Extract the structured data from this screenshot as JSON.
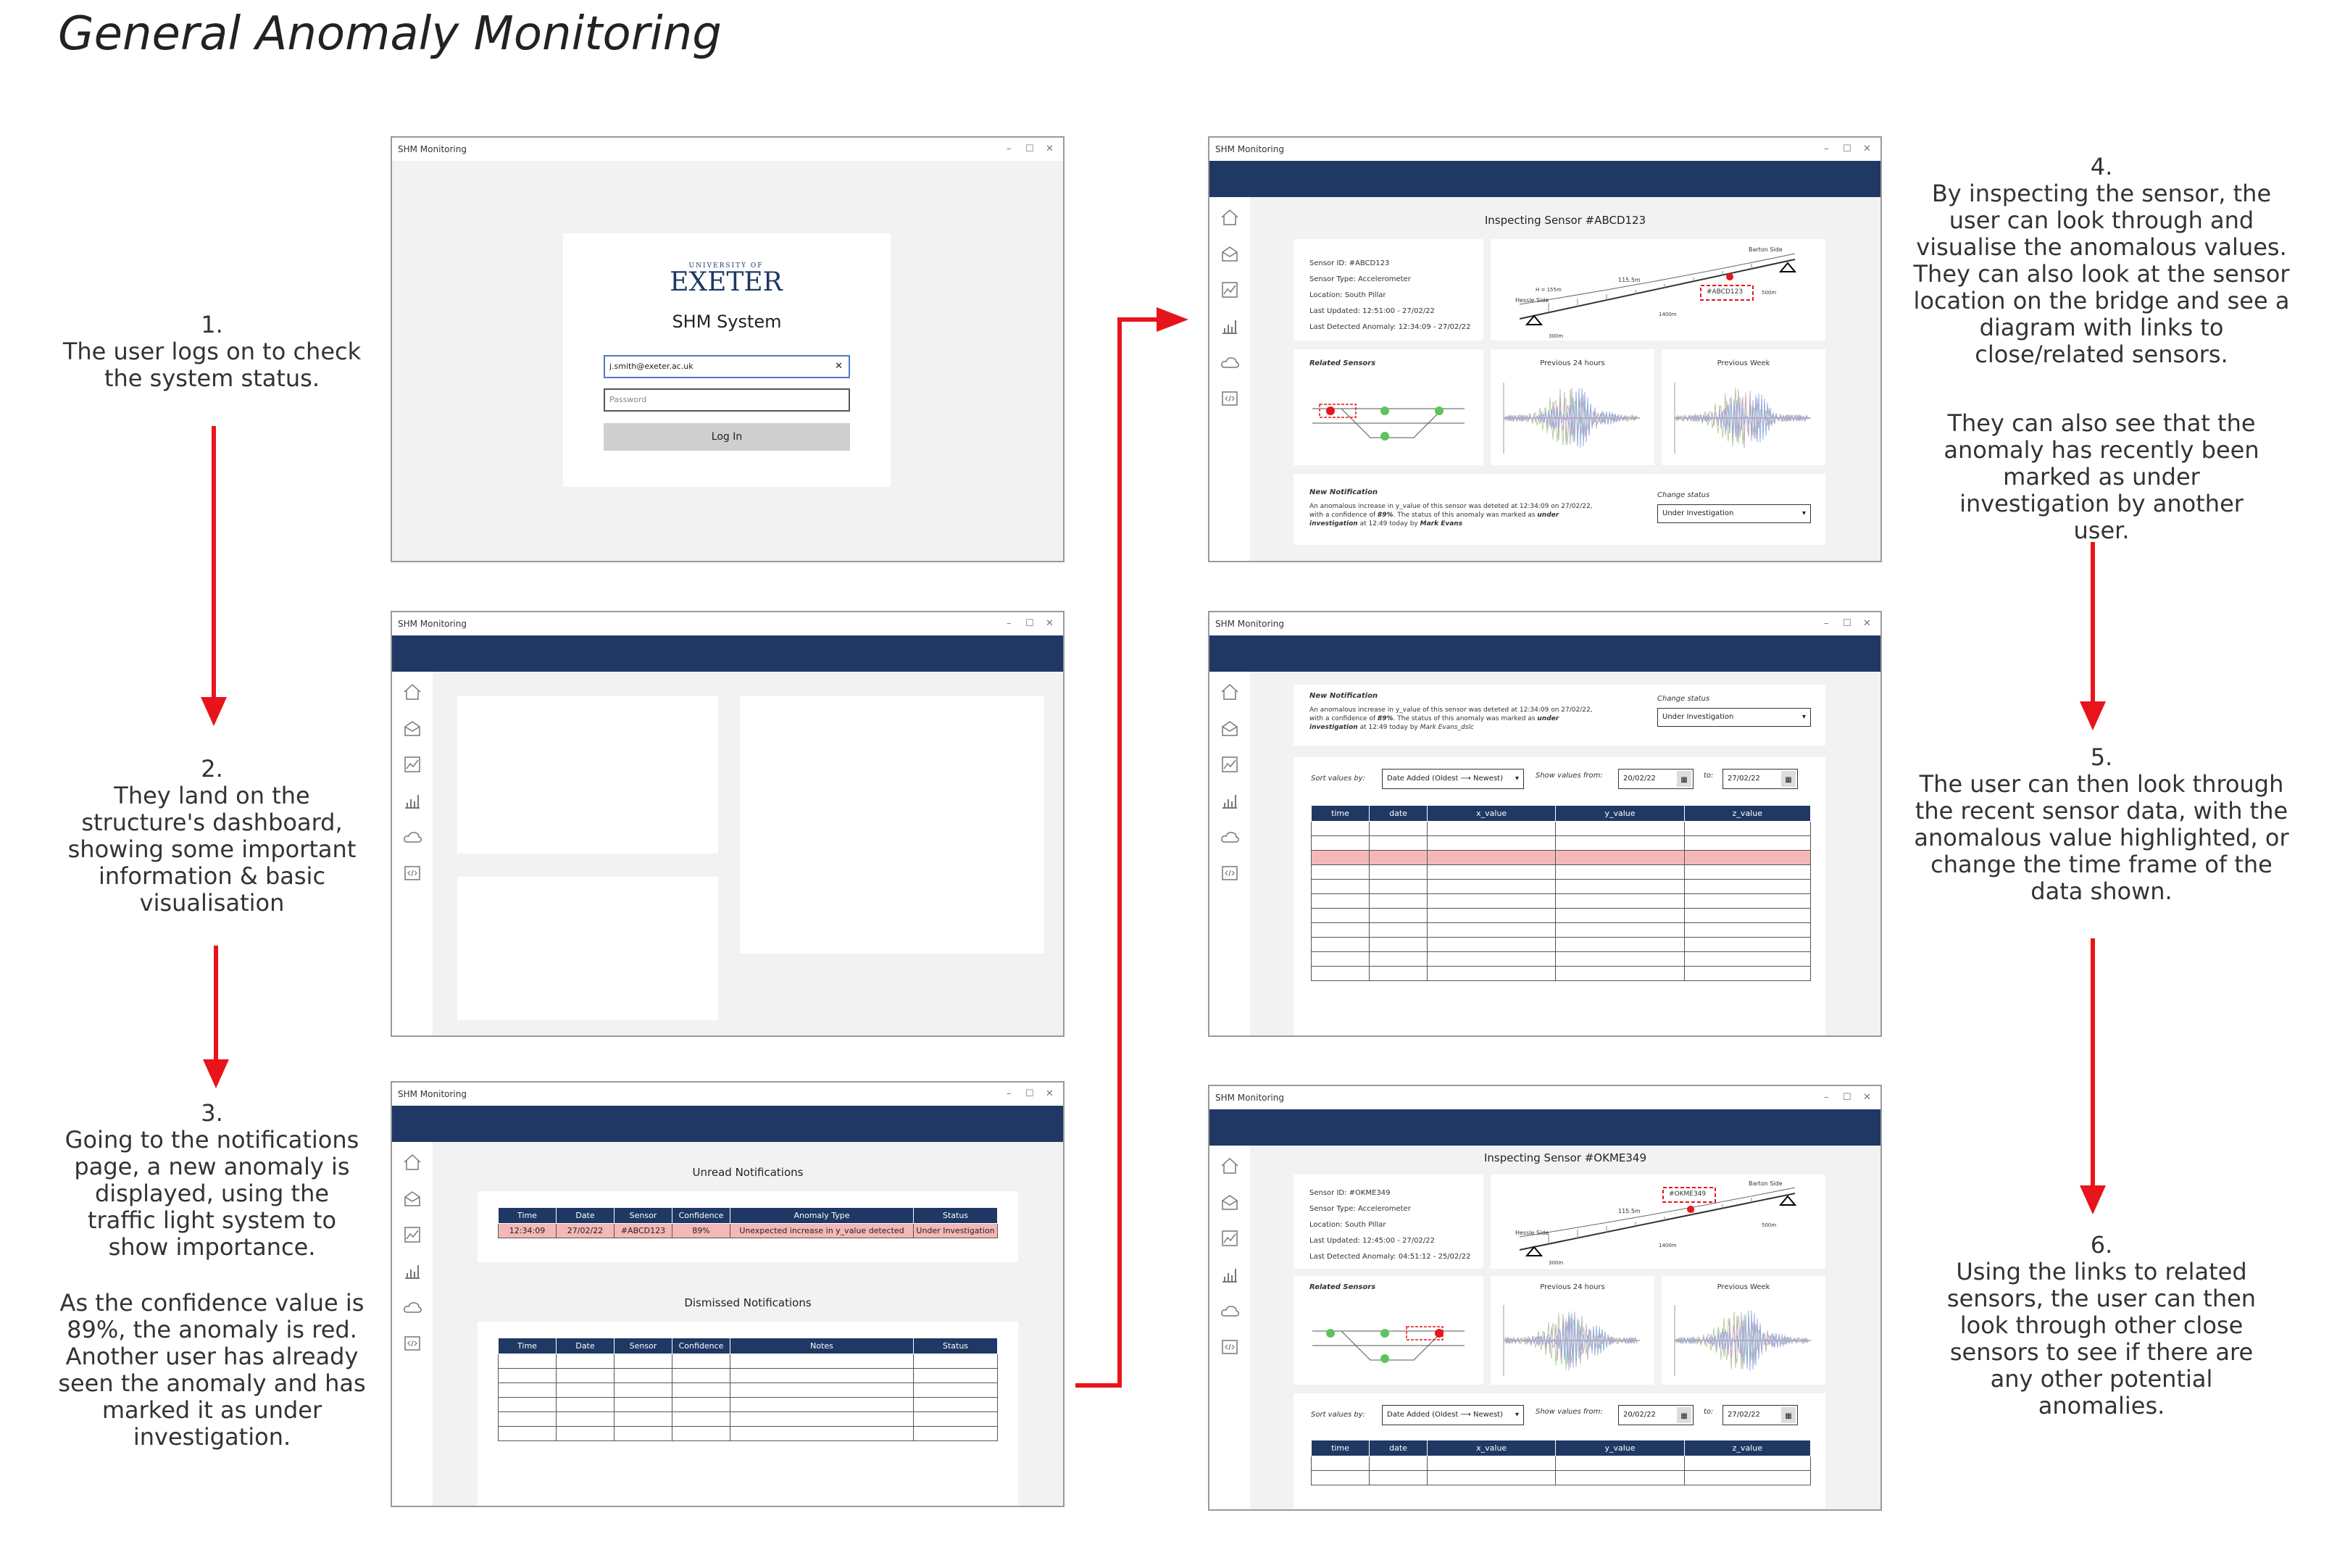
{
  "title": "General Anomaly Monitoring",
  "steps": [
    {
      "num": "1.",
      "text": "The user logs on to check the system status."
    },
    {
      "num": "2.",
      "text": "They land on the structure's dashboard, showing some important information & basic visualisation"
    },
    {
      "num": "3.",
      "text": "Going to the notifications page, a new anomaly is displayed, using the traffic light system to show importance.",
      "text2": "As the confidence value is 89%, the anomaly is red. Another user has already seen the anomaly and has marked it as under investigation."
    },
    {
      "num": "4.",
      "text": "By inspecting the sensor, the user can look through and visualise the anomalous values. They can also look at the sensor location on the bridge and see a diagram with links to close/related sensors.",
      "text2": "They can also see that the anomaly has recently been marked as under investigation by another user."
    },
    {
      "num": "5.",
      "text": "The user can then look through the recent sensor data, with the anomalous value highlighted, or change the time frame of the data shown."
    },
    {
      "num": "6.",
      "text": "Using the links to related sensors, the user can then look through other close sensors to see if there are any other potential anomalies."
    }
  ],
  "window_title": "SHM Monitoring",
  "window_controls": {
    "min": "–",
    "max": "☐",
    "close": "✕"
  },
  "login": {
    "logo_top": "UNIVERSITY OF",
    "logo_main": "EXETER",
    "system_name": "SHM System",
    "email": "j.smith@exeter.ac.uk",
    "password_placeholder": "Password",
    "login_button": "Log In",
    "clear": "✕"
  },
  "notifications": {
    "unread_title": "Unread Notifications",
    "dismissed_title": "Dismissed Notifications",
    "unread_headers": [
      "Time",
      "Date",
      "Sensor",
      "Confidence",
      "Anomaly Type",
      "Status"
    ],
    "unread_row": [
      "12:34:09",
      "27/02/22",
      "#ABCD123",
      "89%",
      "Unexpected increase in y_value detected",
      "Under Investigation"
    ],
    "dismissed_headers": [
      "Time",
      "Date",
      "Sensor",
      "Confidence",
      "Notes",
      "Status"
    ]
  },
  "sensor1": {
    "heading": "Inspecting Sensor #ABCD123",
    "info": [
      "Sensor ID: #ABCD123",
      "Sensor Type: Accelerometer",
      "Location: South Pillar",
      "Last Updated: 12:51:00 - 27/02/22",
      "Last Detected Anomaly: 12:34:09 - 27/02/22"
    ],
    "tag": "#ABCD123"
  },
  "sensor2": {
    "heading": "Inspecting Sensor #OKME349",
    "info": [
      "Sensor ID: #OKME349",
      "Sensor Type: Accelerometer",
      "Location: South Pillar",
      "Last Updated: 12:45:00 - 27/02/22",
      "Last Detected Anomaly: 04:51:12 - 25/02/22"
    ],
    "tag": "#OKME349"
  },
  "bridge": {
    "side_a": "Barton Side",
    "side_b": "Hessle Side",
    "span": "115.5m",
    "h": "H = 155m",
    "len": "1400m",
    "len2": "300m",
    "end": "500m"
  },
  "related_sensors": "Related Sensors",
  "prev_24": "Previous 24 hours",
  "prev_week": "Previous Week",
  "notification": {
    "title": "New Notification",
    "line1": "An anomalous increase in y_value of this sensor was deteted at 12:34:09 on 27/02/22,",
    "line2a": "with a confidence of ",
    "line2b": "89%",
    "line2c": ". The status of this anomaly was marked as ",
    "line2d": "under",
    "line3a": "investigation",
    "line3b": " at 12:49 today by ",
    "line3c": "Mark Evans",
    "line3c_alt": "Mark Evans_dslc",
    "change_status": "Change status",
    "status_value": "Under Investigation"
  },
  "data_view": {
    "sort_label": "Sort values by:",
    "sort_value": "Date Added (Oldest ⟶ Newest)",
    "from_label": "Show values from:",
    "from_value": "20/02/22",
    "to_label": "to:",
    "to_value": "27/02/22",
    "headers": [
      "time",
      "date",
      "x_value",
      "y_value",
      "z_value"
    ]
  },
  "icons": [
    "home-icon",
    "notification-icon",
    "chart-icon",
    "bar-chart-icon",
    "cloud-icon",
    "code-icon"
  ],
  "colors": {
    "navy": "#1f3864",
    "highlight": "#f4b8b8",
    "arrow": "#e8141b"
  }
}
